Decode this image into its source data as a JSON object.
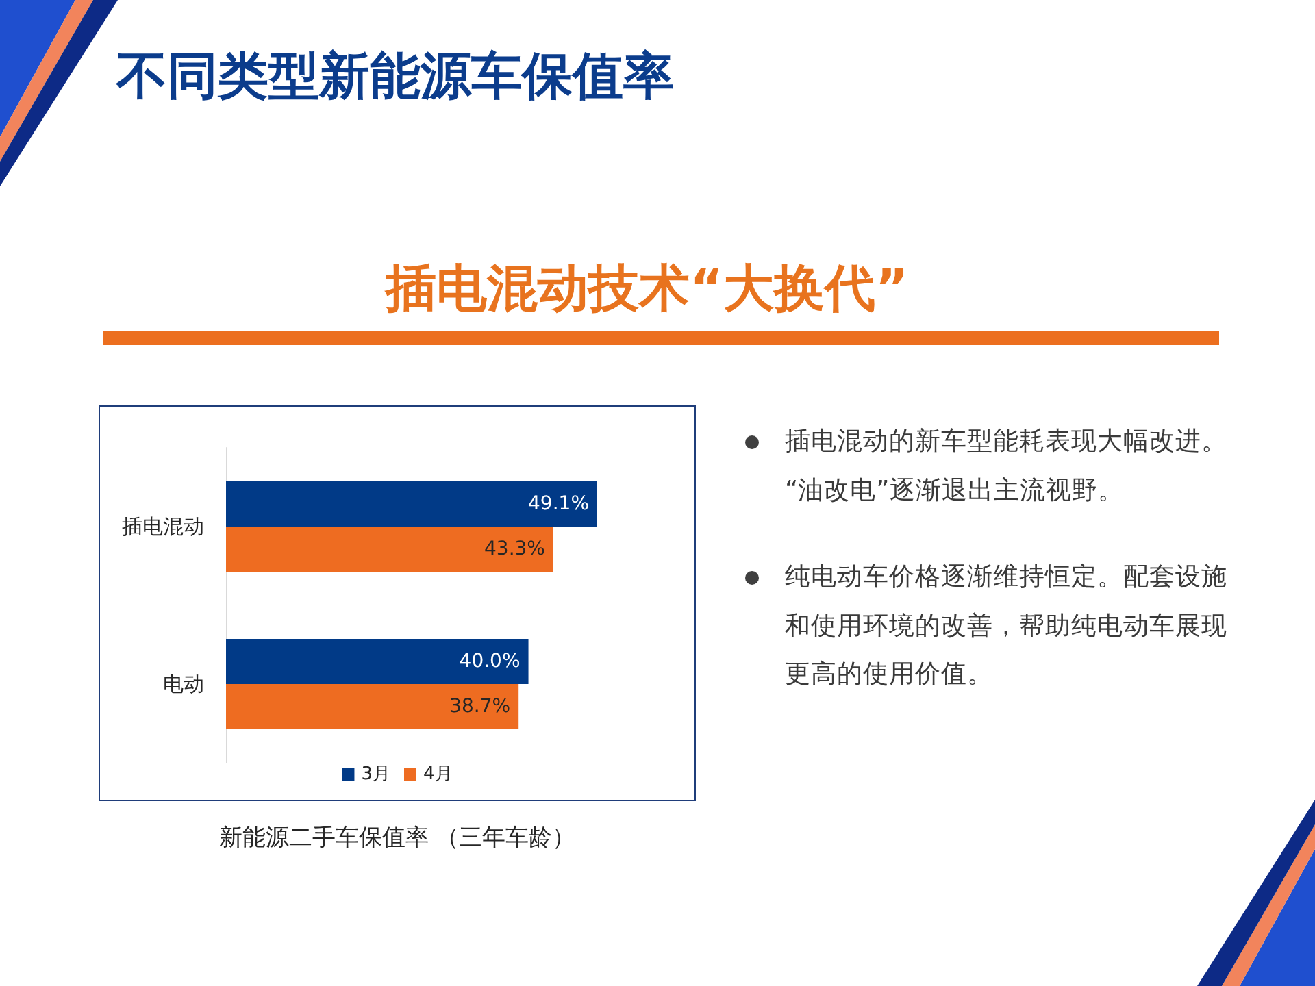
{
  "chart_data": {
    "type": "bar",
    "orientation": "horizontal",
    "title": "不同类型新能源车保值率",
    "subtitle": "插电混动技术“大换代”",
    "categories": [
      "插电混动",
      "电动"
    ],
    "series": [
      {
        "name": "3月",
        "color": "#013a87",
        "values": [
          49.1,
          40.0
        ],
        "value_labels": [
          "49.1%",
          "40.0%"
        ]
      },
      {
        "name": "4月",
        "color": "#ee6c21",
        "values": [
          43.3,
          38.7
        ],
        "value_labels": [
          "43.3%",
          "38.7%"
        ]
      }
    ],
    "tick_labels": "y",
    "grid": false,
    "legend": "bottom",
    "annotations": [
      "插电混动的新车型能耗表现大幅改进。“油改电”逐渐退出主流视野。",
      "纯电动车价格逐渐维持恒定。配套设施和使用环境的改善，帮助纯电动车展现更高的使用价值。",
      "新能源二手车保值率 （三年车龄）"
    ]
  }
}
